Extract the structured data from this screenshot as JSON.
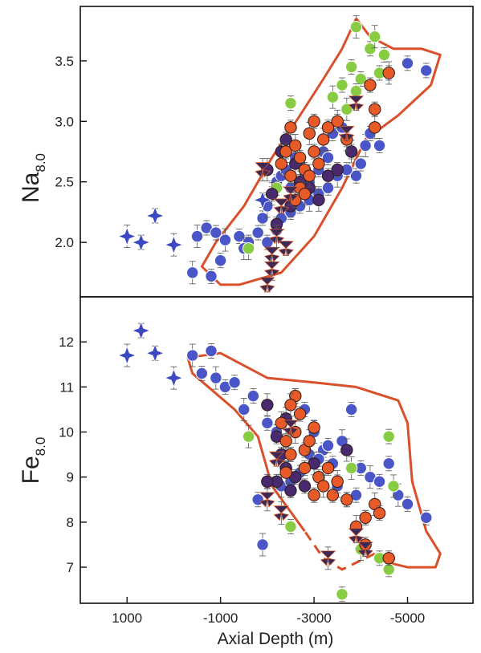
{
  "chart_data": [
    {
      "type": "scatter",
      "panel": "top",
      "ylabel_main": "Na",
      "ylabel_sub": "8.0",
      "xlim": [
        2000,
        -6400
      ],
      "ylim": [
        1.55,
        3.95
      ],
      "yticks": [
        2.0,
        2.5,
        3.0,
        3.5
      ],
      "ytick_labels": [
        "2.0",
        "2.5",
        "3.0",
        "3.5"
      ],
      "series": [
        {
          "marker": "circle",
          "color": "#4a56c8",
          "points": [
            [
              -400,
              1.75
            ],
            [
              -800,
              1.72
            ],
            [
              -1000,
              1.85
            ],
            [
              -500,
              2.05
            ],
            [
              -700,
              2.12
            ],
            [
              -900,
              2.08
            ],
            [
              -1100,
              2.02
            ],
            [
              -1400,
              2.05
            ],
            [
              -1600,
              2.0
            ],
            [
              -1500,
              1.95
            ],
            [
              -1800,
              2.08
            ],
            [
              -1900,
              2.2
            ],
            [
              -2000,
              2.3
            ],
            [
              -2100,
              2.4
            ],
            [
              -2200,
              2.5
            ],
            [
              -2300,
              2.55
            ],
            [
              -2400,
              2.6
            ],
            [
              -2500,
              2.45
            ],
            [
              -2600,
              2.7
            ],
            [
              -2700,
              2.65
            ],
            [
              -2800,
              2.55
            ],
            [
              -2900,
              2.5
            ],
            [
              -3000,
              2.4
            ],
            [
              -3100,
              2.6
            ],
            [
              -3200,
              2.75
            ],
            [
              -3300,
              2.7
            ],
            [
              -3400,
              2.9
            ],
            [
              -3500,
              3.0
            ],
            [
              -3600,
              2.95
            ],
            [
              -3700,
              2.85
            ],
            [
              -3800,
              2.75
            ],
            [
              -3900,
              2.55
            ],
            [
              -4000,
              2.65
            ],
            [
              -4100,
              2.8
            ],
            [
              -4200,
              2.9
            ],
            [
              -4400,
              2.8
            ],
            [
              -4600,
              3.4
            ],
            [
              -5000,
              3.48
            ],
            [
              -5400,
              3.42
            ],
            [
              -2300,
              2.2
            ],
            [
              -2500,
              2.25
            ],
            [
              -2700,
              2.3
            ],
            [
              -2900,
              2.35
            ],
            [
              -3100,
              2.4
            ],
            [
              -3300,
              2.45
            ],
            [
              -3500,
              2.55
            ],
            [
              -3700,
              2.6
            ],
            [
              -2000,
              2.0
            ],
            [
              -2200,
              2.1
            ]
          ]
        },
        {
          "marker": "circle",
          "color": "#88cc44",
          "points": [
            [
              -1600,
              1.95
            ],
            [
              -2200,
              2.45
            ],
            [
              -2500,
              3.15
            ],
            [
              -3400,
              3.2
            ],
            [
              -3600,
              3.3
            ],
            [
              -3800,
              3.45
            ],
            [
              -3900,
              3.78
            ],
            [
              -4000,
              3.35
            ],
            [
              -4200,
              3.6
            ],
            [
              -4300,
              3.7
            ],
            [
              -4400,
              3.4
            ],
            [
              -4500,
              3.55
            ],
            [
              -3700,
              3.1
            ],
            [
              -3900,
              3.25
            ]
          ]
        },
        {
          "marker": "circle",
          "color": "#4a2a6e",
          "points": [
            [
              -2000,
              2.6
            ],
            [
              -2300,
              2.75
            ],
            [
              -2400,
              2.85
            ],
            [
              -2600,
              2.65
            ],
            [
              -2700,
              2.5
            ],
            [
              -2900,
              2.45
            ],
            [
              -3100,
              2.35
            ],
            [
              -3300,
              2.55
            ],
            [
              -2200,
              2.15
            ],
            [
              -2500,
              2.3
            ],
            [
              -3500,
              2.6
            ],
            [
              -3800,
              2.75
            ],
            [
              -2100,
              2.4
            ]
          ]
        },
        {
          "marker": "circle",
          "color": "#e85a28",
          "points": [
            [
              -2300,
              2.65
            ],
            [
              -2400,
              2.75
            ],
            [
              -2500,
              2.55
            ],
            [
              -2600,
              2.8
            ],
            [
              -2700,
              2.7
            ],
            [
              -2800,
              2.6
            ],
            [
              -2900,
              2.9
            ],
            [
              -3000,
              2.75
            ],
            [
              -3100,
              2.65
            ],
            [
              -3200,
              2.85
            ],
            [
              -2500,
              2.95
            ],
            [
              -2700,
              2.45
            ],
            [
              -2900,
              2.55
            ],
            [
              -3300,
              2.95
            ],
            [
              -3500,
              3.0
            ],
            [
              -3700,
              2.85
            ],
            [
              -4200,
              3.3
            ],
            [
              -4300,
              3.1
            ],
            [
              -4300,
              2.95
            ],
            [
              -4600,
              3.4
            ],
            [
              -2600,
              2.35
            ],
            [
              -2800,
              2.4
            ],
            [
              -3000,
              3.0
            ]
          ]
        },
        {
          "marker": "star",
          "color": "#3b48c0",
          "points": [
            [
              1000,
              2.05
            ],
            [
              700,
              2.0
            ],
            [
              400,
              2.22
            ],
            [
              0,
              1.98
            ],
            [
              -1900,
              2.35
            ]
          ]
        },
        {
          "marker": "bowtie",
          "color": "#3a2a55",
          "points": [
            [
              -2100,
              1.78
            ],
            [
              -2000,
              1.65
            ],
            [
              -2100,
              1.9
            ],
            [
              -2200,
              2.05
            ],
            [
              -2400,
              1.95
            ],
            [
              -2300,
              2.3
            ],
            [
              -2500,
              2.4
            ],
            [
              -3900,
              3.15
            ],
            [
              -3700,
              2.9
            ],
            [
              -1900,
              2.6
            ]
          ]
        }
      ],
      "envelope_solid": [
        [
          -3900,
          3.85
        ],
        [
          -4200,
          3.7
        ],
        [
          -4700,
          3.6
        ],
        [
          -5300,
          3.6
        ],
        [
          -5700,
          3.55
        ],
        [
          -5500,
          3.3
        ],
        [
          -4800,
          3.05
        ],
        [
          -4100,
          2.85
        ],
        [
          -3600,
          2.45
        ],
        [
          -3000,
          2.05
        ],
        [
          -2300,
          1.75
        ],
        [
          -1400,
          1.65
        ],
        [
          -1000,
          1.65
        ],
        [
          -600,
          1.8
        ],
        [
          -900,
          2.0
        ],
        [
          -1500,
          2.3
        ],
        [
          -2100,
          2.7
        ],
        [
          -2700,
          3.05
        ],
        [
          -3200,
          3.35
        ],
        [
          -3600,
          3.6
        ],
        [
          -3900,
          3.85
        ]
      ]
    },
    {
      "type": "scatter",
      "panel": "bottom",
      "ylabel_main": "Fe",
      "ylabel_sub": "8.0",
      "xlabel": "Axial Depth (m)",
      "xlim": [
        2000,
        -6400
      ],
      "ylim": [
        6.2,
        13.0
      ],
      "xticks": [
        1000,
        -1000,
        -3000,
        -5000
      ],
      "xtick_labels": [
        "1000",
        "-1000",
        "-3000",
        "-5000"
      ],
      "yticks": [
        7,
        8,
        9,
        10,
        11,
        12
      ],
      "ytick_labels": [
        "7",
        "8",
        "9",
        "10",
        "11",
        "12"
      ],
      "series": [
        {
          "marker": "circle",
          "color": "#4a56c8",
          "points": [
            [
              -400,
              11.7
            ],
            [
              -600,
              11.3
            ],
            [
              -800,
              11.8
            ],
            [
              -900,
              11.2
            ],
            [
              -1100,
              11.0
            ],
            [
              -1300,
              11.1
            ],
            [
              -1500,
              10.5
            ],
            [
              -1700,
              10.8
            ],
            [
              -1800,
              8.5
            ],
            [
              -1900,
              7.5
            ],
            [
              -2000,
              10.2
            ],
            [
              -2200,
              10.0
            ],
            [
              -2400,
              9.8
            ],
            [
              -2600,
              10.8
            ],
            [
              -2800,
              10.5
            ],
            [
              -3000,
              10.0
            ],
            [
              -3200,
              9.6
            ],
            [
              -3400,
              9.3
            ],
            [
              -3600,
              9.8
            ],
            [
              -3800,
              10.5
            ],
            [
              -4000,
              9.2
            ],
            [
              -4200,
              9.0
            ],
            [
              -4400,
              8.9
            ],
            [
              -4600,
              9.3
            ],
            [
              -4800,
              8.6
            ],
            [
              -5000,
              8.4
            ],
            [
              -5400,
              8.1
            ],
            [
              -3500,
              8.8
            ],
            [
              -3700,
              8.5
            ],
            [
              -3900,
              8.6
            ],
            [
              -2300,
              8.8
            ],
            [
              -2500,
              8.9
            ],
            [
              -2700,
              9.1
            ],
            [
              -2900,
              9.5
            ],
            [
              -3100,
              9.4
            ],
            [
              -3300,
              9.7
            ]
          ]
        },
        {
          "marker": "circle",
          "color": "#88cc44",
          "points": [
            [
              -1600,
              9.9
            ],
            [
              -2500,
              7.9
            ],
            [
              -3600,
              6.4
            ],
            [
              -4000,
              7.4
            ],
            [
              -4400,
              7.2
            ],
            [
              -4600,
              6.95
            ],
            [
              -4700,
              8.8
            ],
            [
              -4600,
              9.9
            ],
            [
              -4100,
              8.1
            ],
            [
              -3800,
              9.2
            ]
          ]
        },
        {
          "marker": "circle",
          "color": "#4a2a6e",
          "points": [
            [
              -2000,
              10.6
            ],
            [
              -2200,
              9.9
            ],
            [
              -2300,
              9.5
            ],
            [
              -2400,
              10.3
            ],
            [
              -2600,
              9.0
            ],
            [
              -2800,
              8.8
            ],
            [
              -3000,
              9.3
            ],
            [
              -2200,
              8.9
            ],
            [
              -2500,
              8.7
            ],
            [
              -3700,
              9.6
            ],
            [
              -2000,
              8.9
            ],
            [
              -2400,
              9.2
            ]
          ]
        },
        {
          "marker": "circle",
          "color": "#e85a28",
          "points": [
            [
              -2300,
              10.2
            ],
            [
              -2400,
              9.8
            ],
            [
              -2500,
              9.5
            ],
            [
              -2600,
              10.0
            ],
            [
              -2700,
              10.4
            ],
            [
              -2800,
              9.6
            ],
            [
              -2900,
              9.8
            ],
            [
              -3000,
              10.1
            ],
            [
              -3100,
              9.0
            ],
            [
              -3200,
              8.8
            ],
            [
              -3300,
              9.2
            ],
            [
              -3400,
              8.6
            ],
            [
              -3500,
              8.9
            ],
            [
              -3700,
              8.5
            ],
            [
              -4100,
              8.1
            ],
            [
              -4300,
              8.4
            ],
            [
              -4400,
              8.2
            ],
            [
              -4600,
              7.2
            ],
            [
              -3900,
              7.9
            ],
            [
              -4100,
              7.5
            ],
            [
              -2600,
              10.8
            ],
            [
              -2400,
              9.1
            ],
            [
              -2800,
              9.2
            ],
            [
              -3000,
              8.6
            ],
            [
              -2500,
              10.6
            ]
          ]
        },
        {
          "marker": "star",
          "color": "#3b48c0",
          "points": [
            [
              1000,
              11.7
            ],
            [
              700,
              12.25
            ],
            [
              400,
              11.75
            ],
            [
              0,
              11.2
            ]
          ]
        },
        {
          "marker": "bowtie",
          "color": "#3a2a55",
          "points": [
            [
              -2000,
              8.5
            ],
            [
              -2200,
              9.4
            ],
            [
              -2500,
              10.1
            ],
            [
              -3300,
              7.2
            ],
            [
              -3900,
              7.7
            ],
            [
              -4100,
              7.4
            ],
            [
              -2300,
              8.2
            ]
          ]
        }
      ],
      "envelope_solid": [
        [
          -2800,
          7.8
        ],
        [
          -2100,
          8.8
        ],
        [
          -1800,
          9.9
        ],
        [
          -1300,
          10.5
        ],
        [
          -400,
          11.3
        ],
        [
          -300,
          11.65
        ],
        [
          -1000,
          11.75
        ],
        [
          -2000,
          11.2
        ],
        [
          -3000,
          11.1
        ],
        [
          -3900,
          11.0
        ],
        [
          -4800,
          10.7
        ],
        [
          -5000,
          10.2
        ],
        [
          -5100,
          8.9
        ],
        [
          -5400,
          7.8
        ],
        [
          -5700,
          7.3
        ],
        [
          -5600,
          7.0
        ],
        [
          -5000,
          7.0
        ],
        [
          -4600,
          7.1
        ],
        [
          -4300,
          7.3
        ]
      ],
      "envelope_dashed": [
        [
          -4300,
          7.3
        ],
        [
          -3600,
          6.95
        ],
        [
          -3200,
          7.2
        ],
        [
          -2800,
          7.8
        ]
      ]
    }
  ],
  "colors": {
    "blue_circle": "#4a56c8",
    "green_circle": "#88cc44",
    "purple_circle": "#4a2a6e",
    "orange_circle": "#e85a28",
    "star": "#3b48c0",
    "bowtie": "#3a2a55",
    "envelope": "#d9502a",
    "marker_outline": "#ffffff",
    "axis": "#111111"
  }
}
